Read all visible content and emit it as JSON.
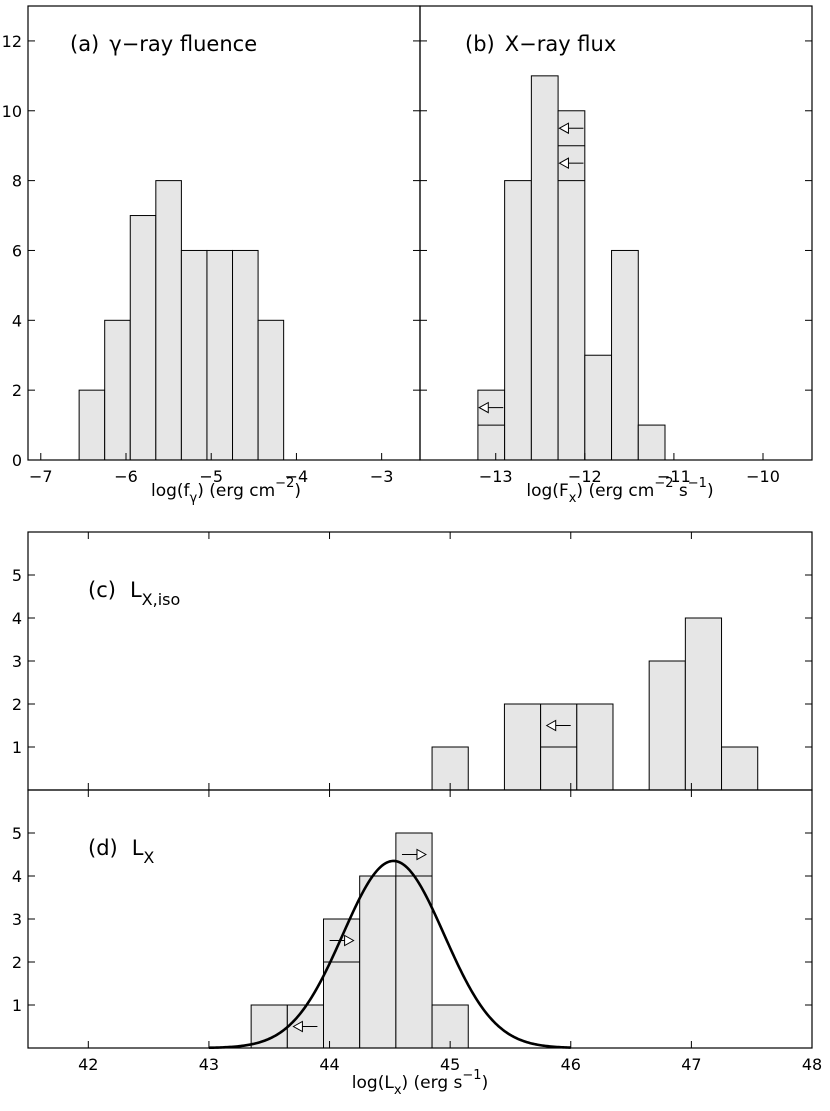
{
  "chart_data": [
    {
      "id": "a",
      "type": "bar",
      "title_prefix": "(a)",
      "title_text": "γ−ray fluence",
      "xlabel": "log(fγ)  (erg cm⁻²)",
      "xlabel_parts": {
        "pre": "log(f",
        "sub": "γ",
        "mid": ")  (erg cm",
        "sup": "−2",
        "post": ")"
      },
      "xlim": [
        -7.15,
        -2.55
      ],
      "ylim": [
        0,
        13
      ],
      "xticks": [
        -7,
        -6,
        -5,
        -4,
        -3
      ],
      "xtick_labels": [
        "−7",
        "−6",
        "−5",
        "−4",
        "−3"
      ],
      "yticks": [
        0,
        2,
        4,
        6,
        8,
        10,
        12
      ],
      "ytick_labels": [
        "0",
        "2",
        "4",
        "6",
        "8",
        "10",
        "12"
      ],
      "bins": [
        {
          "x0": -6.55,
          "x1": -6.25,
          "value": 2
        },
        {
          "x0": -6.25,
          "x1": -5.95,
          "value": 4
        },
        {
          "x0": -5.95,
          "x1": -5.65,
          "value": 7
        },
        {
          "x0": -5.65,
          "x1": -5.35,
          "value": 8
        },
        {
          "x0": -5.35,
          "x1": -5.05,
          "value": 6
        },
        {
          "x0": -5.05,
          "x1": -4.75,
          "value": 6
        },
        {
          "x0": -4.75,
          "x1": -4.45,
          "value": 6
        },
        {
          "x0": -4.45,
          "x1": -4.15,
          "value": 4
        }
      ],
      "limits": []
    },
    {
      "id": "b",
      "type": "bar",
      "title_prefix": "(b)",
      "title_text": "X−ray flux",
      "xlabel": "log(Fx)  (erg cm⁻² s⁻¹)",
      "xlabel_parts": {
        "pre": "log(F",
        "sub": "x",
        "mid": ")  (erg cm",
        "sup": "−2",
        "mid2": " s",
        "sup2": "−1",
        "post": ")"
      },
      "xlim": [
        -13.85,
        -9.45
      ],
      "ylim": [
        0,
        13
      ],
      "xticks": [
        -13,
        -12,
        -11,
        -10
      ],
      "xtick_labels": [
        "−13",
        "−12",
        "−11",
        "−10"
      ],
      "yticks": [
        0,
        2,
        4,
        6,
        8,
        10,
        12
      ],
      "ytick_labels": [
        "0",
        "2",
        "4",
        "6",
        "8",
        "10",
        "12"
      ],
      "bins": [
        {
          "x0": -13.2,
          "x1": -12.9,
          "value": 2
        },
        {
          "x0": -12.9,
          "x1": -12.6,
          "value": 8
        },
        {
          "x0": -12.6,
          "x1": -12.3,
          "value": 11
        },
        {
          "x0": -12.3,
          "x1": -12.0,
          "value": 10
        },
        {
          "x0": -12.0,
          "x1": -11.7,
          "value": 3
        },
        {
          "x0": -11.7,
          "x1": -11.4,
          "value": 6
        },
        {
          "x0": -11.4,
          "x1": -11.1,
          "value": 1
        }
      ],
      "limits": [
        {
          "bin": 0,
          "level": 1,
          "dir": "left"
        },
        {
          "bin": 3,
          "level": 8,
          "dir": "left"
        },
        {
          "bin": 3,
          "level": 9,
          "dir": "left"
        }
      ]
    },
    {
      "id": "c",
      "type": "bar",
      "title_prefix": "(c)",
      "title_text": "L",
      "title_sub": "X,iso",
      "xlim": [
        41.5,
        48
      ],
      "ylim": [
        0,
        6
      ],
      "yticks": [
        1,
        2,
        3,
        4,
        5
      ],
      "ytick_labels": [
        "1",
        "2",
        "3",
        "4",
        "5"
      ],
      "bins": [
        {
          "x0": 44.85,
          "x1": 45.15,
          "value": 1
        },
        {
          "x0": 45.45,
          "x1": 45.75,
          "value": 2
        },
        {
          "x0": 45.75,
          "x1": 46.05,
          "value": 2
        },
        {
          "x0": 46.05,
          "x1": 46.35,
          "value": 2
        },
        {
          "x0": 46.65,
          "x1": 46.95,
          "value": 3
        },
        {
          "x0": 46.95,
          "x1": 47.25,
          "value": 4
        },
        {
          "x0": 47.25,
          "x1": 47.55,
          "value": 1
        }
      ],
      "limits": [
        {
          "bin": 2,
          "level": 1,
          "dir": "left"
        }
      ]
    },
    {
      "id": "d",
      "type": "bar",
      "title_prefix": "(d)",
      "title_text": "L",
      "title_sub": "X",
      "xlabel": "log(Lx)  (erg s⁻¹)",
      "xlabel_parts": {
        "pre": "log(L",
        "sub": "x",
        "mid": ")  (erg s",
        "sup": "−1",
        "post": ")"
      },
      "xlim": [
        41.5,
        48
      ],
      "ylim": [
        0,
        6
      ],
      "xticks": [
        42,
        43,
        44,
        45,
        46,
        47,
        48
      ],
      "xtick_labels": [
        "42",
        "43",
        "44",
        "45",
        "46",
        "47",
        "48"
      ],
      "yticks": [
        1,
        2,
        3,
        4,
        5
      ],
      "ytick_labels": [
        "1",
        "2",
        "3",
        "4",
        "5"
      ],
      "bins": [
        {
          "x0": 43.35,
          "x1": 43.65,
          "value": 1
        },
        {
          "x0": 43.65,
          "x1": 43.95,
          "value": 1
        },
        {
          "x0": 43.95,
          "x1": 44.25,
          "value": 3
        },
        {
          "x0": 44.25,
          "x1": 44.55,
          "value": 4
        },
        {
          "x0": 44.55,
          "x1": 44.85,
          "value": 5
        },
        {
          "x0": 44.85,
          "x1": 45.15,
          "value": 1
        }
      ],
      "limits": [
        {
          "bin": 1,
          "level": 0,
          "dir": "left"
        },
        {
          "bin": 2,
          "level": 2,
          "dir": "right"
        },
        {
          "bin": 4,
          "level": 4,
          "dir": "right"
        }
      ],
      "fit": {
        "type": "gaussian",
        "mean": 44.53,
        "sigma": 0.42,
        "amplitude": 4.35,
        "xrange": [
          43.0,
          46.0
        ]
      }
    }
  ]
}
